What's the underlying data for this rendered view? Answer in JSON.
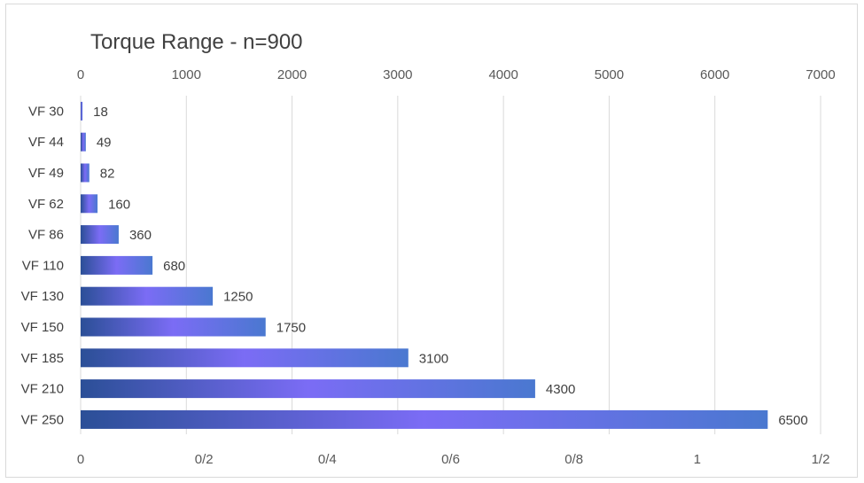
{
  "chart_data": {
    "type": "bar",
    "orientation": "horizontal",
    "title": "Torque Range - n=900",
    "categories": [
      "VF 30",
      "VF 44",
      "VF 49",
      "VF 62",
      "VF 86",
      "VF 110",
      "VF 130",
      "VF 150",
      "VF 185",
      "VF 210",
      "VF 250"
    ],
    "values": [
      18,
      49,
      82,
      160,
      360,
      680,
      1250,
      1750,
      3100,
      4300,
      6500
    ],
    "data_labels": [
      "18",
      "49",
      "82",
      "160",
      "360",
      "680",
      "1250",
      "1750",
      "3100",
      "4300",
      "6500"
    ],
    "top_axis": {
      "range": [
        0,
        7000
      ],
      "ticks": [
        0,
        1000,
        2000,
        3000,
        4000,
        5000,
        6000,
        7000
      ],
      "tick_labels": [
        "0",
        "1000",
        "2000",
        "3000",
        "4000",
        "5000",
        "6000",
        "7000"
      ]
    },
    "bottom_axis": {
      "ticks": [
        0,
        0.2,
        0.4,
        0.6,
        0.8,
        1,
        1.2
      ],
      "tick_labels": [
        "0",
        "0/2",
        "0/4",
        "0/6",
        "0/8",
        "1",
        "1/2"
      ]
    },
    "grid": true,
    "legend": false,
    "colors": {
      "gradient_dark": "#2b4f97",
      "gradient_light": "#7b6cf5",
      "gradient_end": "#4a78d0",
      "grid": "#d9d9d9",
      "text": "#404040"
    }
  }
}
